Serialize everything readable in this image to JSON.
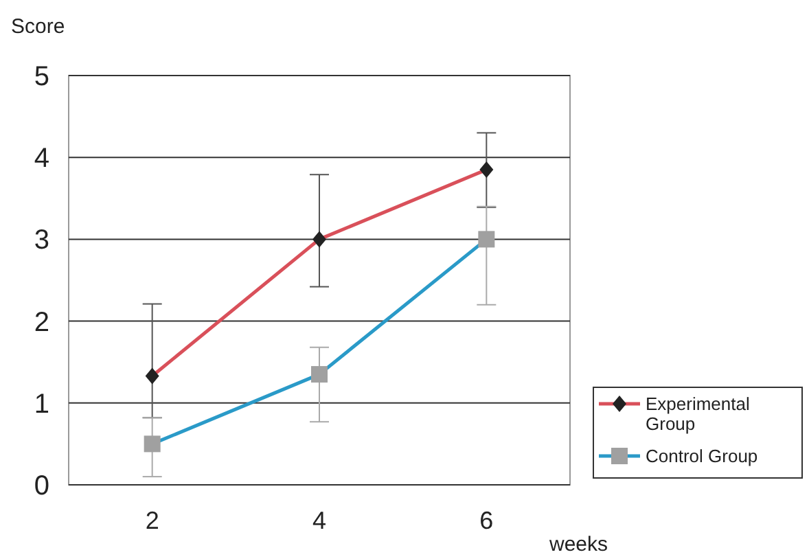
{
  "chart_data": {
    "type": "line",
    "ylabel": "Score",
    "xlabel": "weeks",
    "categories": [
      "2",
      "4",
      "6"
    ],
    "ylim": [
      0,
      5
    ],
    "yticks": [
      0,
      1,
      2,
      3,
      4,
      5
    ],
    "grid": "y",
    "legend": "bottom right",
    "series": [
      {
        "name": "Experimental Group",
        "color": "#d9505a",
        "marker": "diamond",
        "values": [
          1.33,
          3.0,
          3.85
        ],
        "errors": [
          [
            0.82,
            2.21
          ],
          [
            2.42,
            3.79
          ],
          [
            3.39,
            4.3
          ]
        ]
      },
      {
        "name": "Control Group",
        "color": "#2a9ac8",
        "marker": "square",
        "values": [
          0.5,
          1.35,
          3.0
        ],
        "errors": [
          [
            0.1,
            0.82
          ],
          [
            0.77,
            1.68
          ],
          [
            2.2,
            3.4
          ]
        ]
      }
    ]
  }
}
